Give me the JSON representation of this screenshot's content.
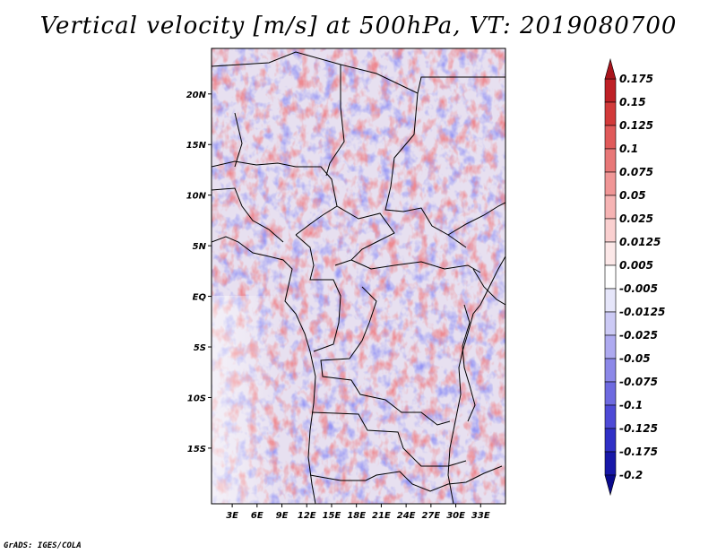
{
  "title": "Vertical velocity [m/s] at 500hPa, VT: 2019080700",
  "credit": "GrADS: IGES/COLA",
  "chart_data": {
    "type": "heatmap",
    "title": "Vertical velocity [m/s] at 500hPa, VT: 2019080700",
    "variable": "Vertical velocity",
    "units": "m/s",
    "level": "500hPa",
    "valid_time": "2019080700",
    "xlabel": "",
    "ylabel": "",
    "x_range": [
      0.5,
      36
    ],
    "y_range": [
      -20.5,
      24.5
    ],
    "x_ticks": [
      {
        "value": 3,
        "label": "3E"
      },
      {
        "value": 6,
        "label": "6E"
      },
      {
        "value": 9,
        "label": "9E"
      },
      {
        "value": 12,
        "label": "12E"
      },
      {
        "value": 15,
        "label": "15E"
      },
      {
        "value": 18,
        "label": "18E"
      },
      {
        "value": 21,
        "label": "21E"
      },
      {
        "value": 24,
        "label": "24E"
      },
      {
        "value": 27,
        "label": "27E"
      },
      {
        "value": 30,
        "label": "30E"
      },
      {
        "value": 33,
        "label": "33E"
      }
    ],
    "y_ticks": [
      {
        "value": 20,
        "label": "20N"
      },
      {
        "value": 15,
        "label": "15N"
      },
      {
        "value": 10,
        "label": "10N"
      },
      {
        "value": 5,
        "label": "5N"
      },
      {
        "value": 0,
        "label": "EQ"
      },
      {
        "value": -5,
        "label": "5S"
      },
      {
        "value": -10,
        "label": "10S"
      },
      {
        "value": -15,
        "label": "15S"
      }
    ],
    "colorbar": {
      "labels": [
        "0.175",
        "0.15",
        "0.125",
        "0.1",
        "0.075",
        "0.05",
        "0.025",
        "0.0125",
        "0.005",
        "-0.005",
        "-0.0125",
        "-0.025",
        "-0.05",
        "-0.075",
        "-0.1",
        "-0.125",
        "-0.175",
        "-0.2"
      ],
      "colors": [
        "#a8141c",
        "#be2026",
        "#d23a3a",
        "#e05a5a",
        "#e87878",
        "#f09696",
        "#f6b4b4",
        "#fad0d0",
        "#fce8e8",
        "#ffffff",
        "#e6e6fa",
        "#cccaf5",
        "#aeaaf0",
        "#8c88e8",
        "#6e6ae0",
        "#4e4ad6",
        "#3030c6",
        "#1818a8",
        "#0a0a8c"
      ],
      "top_color": "#a8141c",
      "bottom_color": "#0a0a8c"
    }
  }
}
